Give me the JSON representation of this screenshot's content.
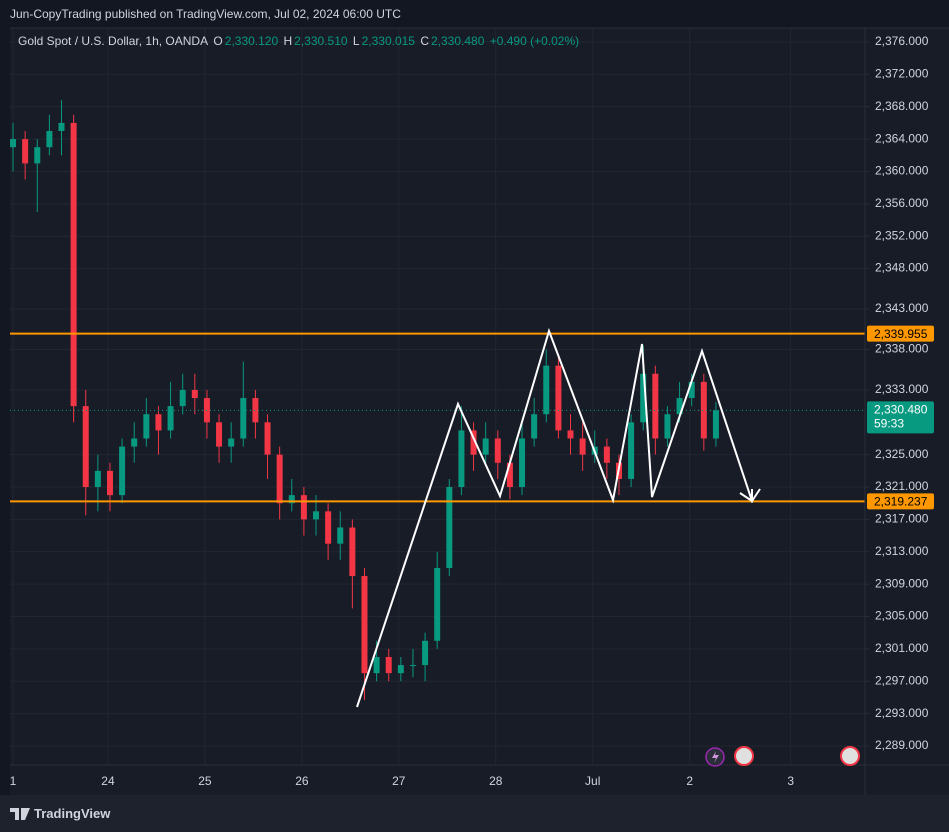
{
  "header": {
    "text": "Jun-CopyTrading published on TradingView.com, Jul 02, 2024 06:00 UTC"
  },
  "footer": {
    "brand": "TradingView"
  },
  "legend": {
    "symbol": "Gold Spot / U.S. Dollar, 1h, OANDA",
    "items": [
      {
        "label": "O",
        "value": "2,330.120"
      },
      {
        "label": "H",
        "value": "2,330.510"
      },
      {
        "label": "L",
        "value": "2,330.015"
      },
      {
        "label": "C",
        "value": "2,330.480"
      }
    ],
    "change": "+0.490 (+0.02%)"
  },
  "chart_data": {
    "type": "candlestick",
    "grid": true,
    "up_color": "#089981",
    "down_color": "#f23645",
    "xlim": [
      -0.75,
      210.9
    ],
    "ylim": [
      2286.65,
      2377.73
    ],
    "xticks": [
      {
        "value": 0,
        "label": "1"
      },
      {
        "value": 23.5,
        "label": "24"
      },
      {
        "value": 47.5,
        "label": "25"
      },
      {
        "value": 71.5,
        "label": "26"
      },
      {
        "value": 95.5,
        "label": "27"
      },
      {
        "value": 119.5,
        "label": "28"
      },
      {
        "value": 143.5,
        "label": "Jul"
      },
      {
        "value": 167.5,
        "label": "2"
      },
      {
        "value": 192.5,
        "label": "3"
      }
    ],
    "yticks": [
      {
        "value": 2376,
        "label": "2,376.000"
      },
      {
        "value": 2372,
        "label": "2,372.000"
      },
      {
        "value": 2368,
        "label": "2,368.000"
      },
      {
        "value": 2364,
        "label": "2,364.000"
      },
      {
        "value": 2360,
        "label": "2,360.000"
      },
      {
        "value": 2356,
        "label": "2,356.000"
      },
      {
        "value": 2352,
        "label": "2,352.000"
      },
      {
        "value": 2348,
        "label": "2,348.000"
      },
      {
        "value": 2343,
        "label": "2,343.000"
      },
      {
        "value": 2338,
        "label": "2,338.000"
      },
      {
        "value": 2333,
        "label": "2,333.000"
      },
      {
        "value": 2325,
        "label": "2,325.000"
      },
      {
        "value": 2321,
        "label": "2,321.000"
      },
      {
        "value": 2317,
        "label": "2,317.000"
      },
      {
        "value": 2313,
        "label": "2,313.000"
      },
      {
        "value": 2309,
        "label": "2,309.000"
      },
      {
        "value": 2305,
        "label": "2,305.000"
      },
      {
        "value": 2301,
        "label": "2,301.000"
      },
      {
        "value": 2297,
        "label": "2,297.000"
      },
      {
        "value": 2293,
        "label": "2,293.000"
      },
      {
        "value": 2289,
        "label": "2,289.000"
      }
    ],
    "x": [
      0,
      3,
      6,
      9,
      12,
      15,
      18,
      21,
      24,
      27,
      30,
      33,
      36,
      39,
      42,
      45,
      48,
      51,
      54,
      57,
      60,
      63,
      66,
      69,
      72,
      75,
      78,
      81,
      84,
      87,
      90,
      93,
      96,
      99,
      102,
      105,
      108,
      111,
      114,
      117,
      120,
      123,
      126,
      129,
      132,
      135,
      138,
      141,
      144,
      147,
      150,
      153,
      156,
      159,
      162,
      165,
      168,
      171,
      174
    ],
    "open": [
      2363,
      2364,
      2361,
      2363,
      2365,
      2366,
      2331,
      2321,
      2323,
      2320,
      2326,
      2327,
      2330,
      2328,
      2331,
      2333,
      2332,
      2329,
      2326,
      2327,
      2332,
      2329,
      2325,
      2319,
      2320,
      2317,
      2318,
      2314,
      2316,
      2310,
      2298,
      2300,
      2298,
      2299,
      2299,
      2302,
      2311,
      2321,
      2328,
      2325,
      2327,
      2324,
      2321,
      2327,
      2330,
      2336,
      2328,
      2327,
      2325,
      2326,
      2324,
      2322,
      2329,
      2335,
      2327,
      2330,
      2332,
      2334,
      2327
    ],
    "high": [
      2366,
      2365,
      2364,
      2367,
      2368.8,
      2367,
      2333,
      2325,
      2324,
      2327,
      2329,
      2332,
      2331,
      2334,
      2335,
      2335,
      2333,
      2330,
      2329,
      2336.5,
      2333,
      2330,
      2326,
      2322,
      2321,
      2320,
      2319,
      2318,
      2317,
      2311,
      2302,
      2301,
      2300,
      2301,
      2303,
      2313,
      2322,
      2331,
      2329,
      2329,
      2328,
      2325,
      2329,
      2332,
      2338,
      2337,
      2330,
      2329,
      2328,
      2327,
      2325,
      2330,
      2338.5,
      2336,
      2331,
      2334,
      2335,
      2335,
      2331.5
    ],
    "low": [
      2360,
      2359,
      2355,
      2362,
      2362,
      2329,
      2317.5,
      2318,
      2318,
      2319,
      2324,
      2326,
      2325,
      2327,
      2330,
      2330,
      2327,
      2324,
      2324,
      2326,
      2327,
      2322,
      2317,
      2318,
      2315,
      2315,
      2312,
      2312,
      2306,
      2294.7,
      2297,
      2297,
      2297,
      2297.5,
      2297,
      2301,
      2310,
      2320,
      2323,
      2324,
      2322,
      2319.5,
      2320,
      2326,
      2329,
      2327,
      2325,
      2323,
      2324,
      2322,
      2320,
      2321,
      2328,
      2325,
      2326,
      2329,
      2331,
      2325.5,
      2326
    ],
    "close": [
      2364,
      2361,
      2363,
      2365,
      2366,
      2331,
      2321,
      2323,
      2320,
      2326,
      2327,
      2330,
      2328,
      2331,
      2333,
      2332,
      2329,
      2326,
      2327,
      2332,
      2329,
      2325,
      2319,
      2320,
      2317,
      2318,
      2314,
      2316,
      2310,
      2298,
      2300,
      2298,
      2299,
      2299,
      2302,
      2311,
      2321,
      2328,
      2325,
      2327,
      2324,
      2321,
      2327,
      2330,
      2336,
      2328,
      2327,
      2325,
      2326,
      2324,
      2322,
      2329,
      2335,
      2327,
      2330,
      2332,
      2334,
      2327,
      2330.48
    ],
    "hlines": [
      {
        "value": 2339.955,
        "label": "2,339.955",
        "color": "#ff9800"
      },
      {
        "value": 2319.237,
        "label": "2,319.237",
        "color": "#ff9800"
      }
    ],
    "last_price": {
      "value": 2330.48,
      "label": "2,330.480",
      "countdown": "59:33",
      "color": "#089981"
    }
  }
}
